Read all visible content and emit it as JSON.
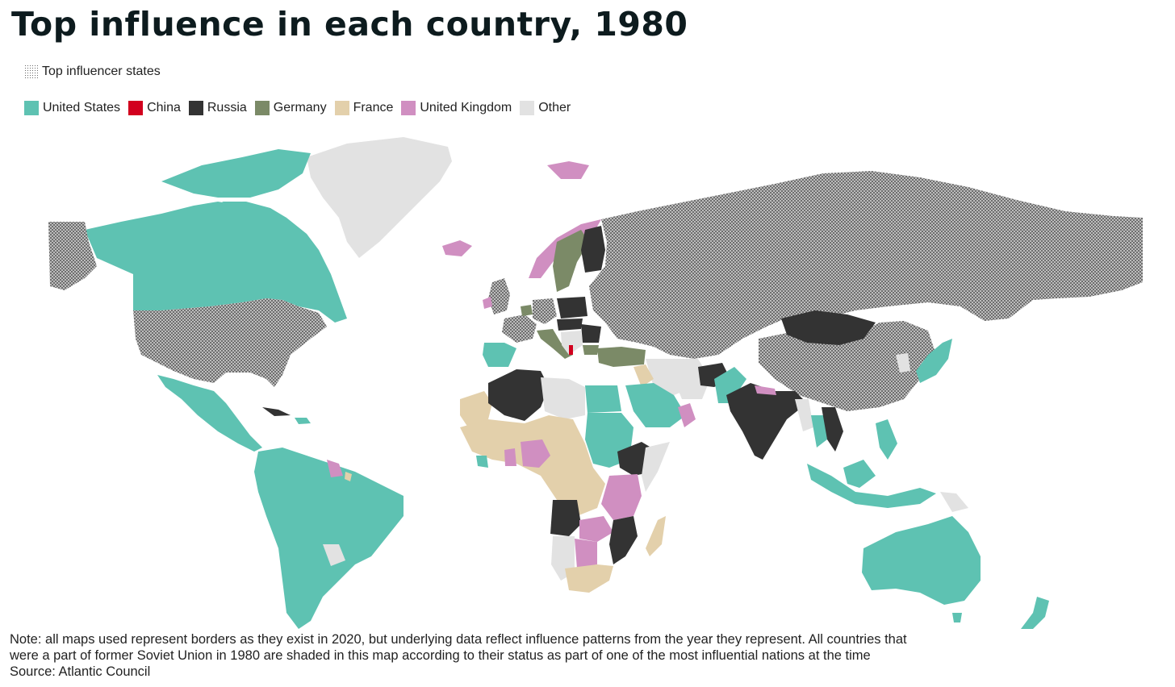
{
  "title": "Top influence in each country, 1980",
  "pattern_legend": {
    "label": "Top influencer states"
  },
  "legend": [
    {
      "label": "United States",
      "color": "#5ec2b2"
    },
    {
      "label": "China",
      "color": "#d2001e"
    },
    {
      "label": "Russia",
      "color": "#333333"
    },
    {
      "label": "Germany",
      "color": "#7b8a67"
    },
    {
      "label": "France",
      "color": "#e3d0ab"
    },
    {
      "label": "United Kingdom",
      "color": "#d08fc1"
    },
    {
      "label": "Other",
      "color": "#e2e2e2"
    }
  ],
  "note": {
    "line1": "Note: all maps used represent borders as they exist in 2020, but underlying data reflect influence patterns from the year they represent. All countries that",
    "line2": "were a part of former Soviet Union in 1980 are shaded in this map according to their status as part of one of the most influential nations at the time",
    "line3": "Source: Atlantic Council"
  }
}
